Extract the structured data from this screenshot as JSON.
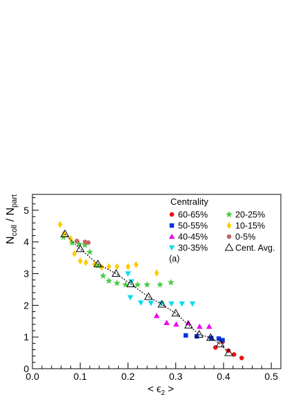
{
  "chart_data": {
    "type": "scatter",
    "title": "",
    "xlabel_main": "< ϵ",
    "xlabel_sub": "2",
    "xlabel_end": " >",
    "ylabel_num": "N",
    "ylabel_num_sub": "coll",
    "ylabel_sep": " / N",
    "ylabel_den_sub": "part",
    "xlim": [
      0.0,
      0.52
    ],
    "ylim": [
      0,
      5.5
    ],
    "xticks": [
      0.0,
      0.1,
      0.2,
      0.3,
      0.4,
      0.5
    ],
    "xtick_labels": [
      "0.0",
      "0.1",
      "0.2",
      "0.3",
      "0.4",
      "0.5"
    ],
    "yticks": [
      0,
      1,
      2,
      3,
      4,
      5
    ],
    "ytick_labels": [
      "0",
      "1",
      "2",
      "3",
      "4",
      "5"
    ],
    "legend_title": "Centrality",
    "legend_placement": "top-right",
    "panel_label": "(a)",
    "grid": false,
    "series": [
      {
        "name": "60-65%",
        "marker": "circle",
        "color": "#ee1111",
        "points": [
          [
            0.383,
            0.67
          ],
          [
            0.398,
            0.85
          ],
          [
            0.41,
            0.57
          ],
          [
            0.422,
            0.45
          ],
          [
            0.438,
            0.34
          ]
        ]
      },
      {
        "name": "50-55%",
        "marker": "square",
        "color": "#0033dd",
        "points": [
          [
            0.321,
            1.05
          ],
          [
            0.344,
            1.02
          ],
          [
            0.374,
            0.97
          ],
          [
            0.39,
            0.95
          ],
          [
            0.398,
            0.9
          ]
        ]
      },
      {
        "name": "40-45%",
        "marker": "triangle-up",
        "color": "#ee00ee",
        "points": [
          [
            0.26,
            1.67
          ],
          [
            0.281,
            1.45
          ],
          [
            0.301,
            1.4
          ],
          [
            0.326,
            1.45
          ],
          [
            0.35,
            1.33
          ],
          [
            0.37,
            1.33
          ]
        ]
      },
      {
        "name": "30-35%",
        "marker": "triangle-down",
        "color": "#00ddee",
        "points": [
          [
            0.2,
            3.0
          ],
          [
            0.207,
            2.75
          ],
          [
            0.205,
            2.25
          ],
          [
            0.227,
            2.08
          ],
          [
            0.248,
            2.07
          ],
          [
            0.27,
            2.05
          ],
          [
            0.291,
            2.05
          ],
          [
            0.313,
            2.05
          ],
          [
            0.335,
            2.05
          ]
        ]
      },
      {
        "name": "20-25%",
        "marker": "star",
        "color": "#44cc44",
        "points": [
          [
            0.065,
            4.15
          ],
          [
            0.083,
            3.97
          ],
          [
            0.098,
            3.93
          ],
          [
            0.11,
            3.9
          ],
          [
            0.12,
            3.68
          ],
          [
            0.137,
            3.25
          ],
          [
            0.148,
            2.93
          ],
          [
            0.16,
            2.77
          ],
          [
            0.177,
            2.7
          ],
          [
            0.195,
            2.65
          ],
          [
            0.22,
            2.65
          ],
          [
            0.24,
            2.65
          ],
          [
            0.267,
            2.65
          ],
          [
            0.29,
            2.72
          ]
        ]
      },
      {
        "name": "10-15%",
        "marker": "diamond",
        "color": "#ffcc00",
        "points": [
          [
            0.058,
            4.55
          ],
          [
            0.066,
            4.25
          ],
          [
            0.08,
            4.1
          ],
          [
            0.088,
            3.63
          ],
          [
            0.1,
            3.4
          ],
          [
            0.112,
            3.35
          ],
          [
            0.13,
            3.3
          ],
          [
            0.145,
            3.2
          ],
          [
            0.16,
            3.22
          ],
          [
            0.177,
            3.22
          ],
          [
            0.2,
            3.22
          ],
          [
            0.217,
            3.28
          ],
          [
            0.26,
            3.02
          ]
        ]
      },
      {
        "name": "0-5%",
        "marker": "circle",
        "color": "#c86464",
        "points": [
          [
            0.093,
            4.03
          ],
          [
            0.11,
            4.0
          ],
          [
            0.117,
            3.98
          ]
        ]
      },
      {
        "name": "Cent. Avg.",
        "marker": "open-triangle",
        "color": "#000000",
        "points": [
          [
            0.068,
            4.25
          ],
          [
            0.1,
            3.78
          ],
          [
            0.137,
            3.3
          ],
          [
            0.175,
            3.0
          ],
          [
            0.206,
            2.67
          ],
          [
            0.243,
            2.27
          ],
          [
            0.271,
            2.03
          ],
          [
            0.3,
            1.75
          ],
          [
            0.327,
            1.37
          ],
          [
            0.349,
            1.08
          ],
          [
            0.373,
            0.98
          ],
          [
            0.393,
            0.78
          ],
          [
            0.411,
            0.5
          ]
        ]
      }
    ]
  }
}
